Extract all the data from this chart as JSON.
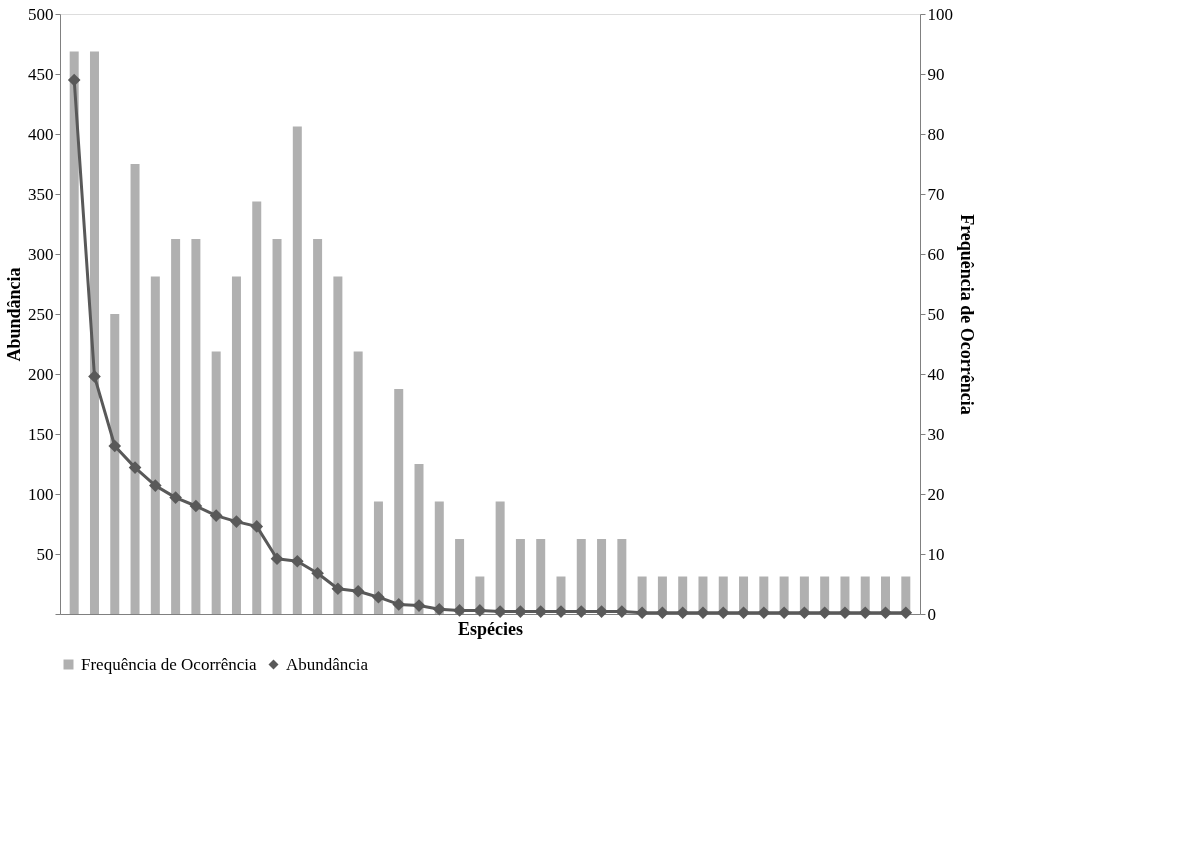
{
  "chart_data": {
    "type": "bar",
    "xlabel": "Espécies",
    "ylabel": "Abundância",
    "y2label": "Frequência de Ocorrência",
    "categories": [
      null,
      null,
      null,
      null,
      null,
      null,
      null,
      null,
      null,
      null,
      null,
      null,
      null,
      null,
      null,
      null,
      null,
      null,
      null,
      null,
      null,
      null,
      null,
      null,
      null,
      null,
      null,
      null,
      null,
      null,
      null,
      null,
      null,
      null,
      null,
      null,
      null,
      null,
      null,
      null,
      null,
      null
    ],
    "series": [
      {
        "name": "Frequência de Ocorrência",
        "axis": "y2",
        "color": "#b0b0b0",
        "values": [
          93.75,
          93.75,
          50,
          75,
          56.25,
          62.5,
          62.5,
          43.75,
          56.25,
          68.75,
          62.5,
          81.25,
          62.5,
          56.25,
          43.75,
          18.75,
          37.5,
          25,
          18.75,
          12.5,
          6.25,
          18.75,
          12.5,
          12.5,
          6.25,
          12.5,
          12.5,
          12.5,
          6.25,
          6.25,
          6.25,
          6.25,
          6.25,
          6.25,
          6.25,
          6.25,
          6.25,
          6.25,
          6.25,
          6.25,
          6.25,
          6.25
        ]
      },
      {
        "name": "Abundância",
        "type": "line",
        "color": "#595959",
        "marker": "diamond",
        "values": [
          445,
          198,
          140,
          122,
          107,
          97,
          90,
          82,
          77,
          73,
          46,
          44,
          34,
          21,
          19,
          14,
          8,
          7,
          4,
          3,
          3,
          2,
          2,
          2,
          2,
          2,
          2,
          2,
          1,
          1,
          1,
          1,
          1,
          1,
          1,
          1,
          1,
          1,
          1,
          1,
          1,
          1
        ]
      }
    ],
    "ylim": [
      0,
      500
    ],
    "yticks": [
      {
        "value": 0,
        "label": null
      },
      50,
      100,
      150,
      200,
      250,
      300,
      350,
      400,
      450,
      500
    ],
    "y2lim": [
      0,
      100
    ],
    "y2ticks": [
      0,
      10,
      20,
      30,
      40,
      50,
      60,
      70,
      80,
      90,
      100
    ],
    "legend": "bottom",
    "grid": false
  }
}
